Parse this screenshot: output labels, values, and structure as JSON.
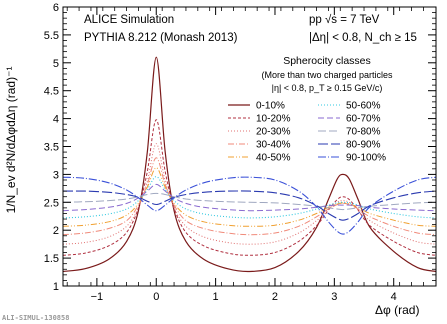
{
  "chart_data": {
    "type": "line",
    "xlabel": "Δφ (rad)",
    "ylabel": "1/N_ev d²N/dΔφdΔη (rad)⁻¹",
    "xlim": [
      -1.5708,
      4.7124
    ],
    "ylim": [
      1,
      6
    ],
    "x_ticks": [
      -1,
      0,
      1,
      2,
      3,
      4
    ],
    "y_ticks": [
      1,
      1.5,
      2,
      2.5,
      3,
      3.5,
      4,
      4.5,
      5,
      5.5,
      6
    ],
    "grid": false,
    "annotations": {
      "sim_line1": "ALICE Simulation",
      "sim_line2": "PYTHIA 8.212 (Monash 2013)",
      "sys_line1": "pp √s = 7 TeV",
      "sys_line2": "|Δη| < 0.8, N_ch ≥ 15",
      "watermark": "ALI-SIMUL-130858"
    },
    "legend": {
      "title": "Spherocity classes",
      "subtitle1": "(More than two charged particles",
      "subtitle2": "|η| < 0.8, p_T ≥ 0.15 GeV/c)"
    },
    "x": [
      -1.5708,
      -1.2,
      -0.8,
      -0.5,
      -0.3,
      -0.15,
      0,
      0.15,
      0.3,
      0.5,
      0.8,
      1.2,
      1.5708,
      2.0,
      2.4,
      2.7,
      2.9,
      3.05,
      3.1416,
      3.25,
      3.4,
      3.6,
      4.0,
      4.4,
      4.7124
    ],
    "series": [
      {
        "name": "0-10%",
        "color": "#7a1a1a",
        "dash": "",
        "width": 1.2,
        "values": [
          1.26,
          1.31,
          1.48,
          1.8,
          2.35,
          3.4,
          5.1,
          3.4,
          2.35,
          1.8,
          1.48,
          1.31,
          1.26,
          1.33,
          1.62,
          2.05,
          2.55,
          2.92,
          3.0,
          2.92,
          2.55,
          2.05,
          1.62,
          1.33,
          1.26
        ]
      },
      {
        "name": "10-20%",
        "color": "#b03040",
        "dash": "3,2",
        "width": 1.0,
        "values": [
          1.55,
          1.59,
          1.72,
          1.96,
          2.4,
          3.05,
          3.98,
          3.05,
          2.4,
          1.96,
          1.72,
          1.59,
          1.55,
          1.6,
          1.8,
          2.08,
          2.36,
          2.55,
          2.6,
          2.55,
          2.36,
          2.08,
          1.8,
          1.6,
          1.55
        ]
      },
      {
        "name": "20-30%",
        "color": "#e07070",
        "dash": "1,2",
        "width": 1.0,
        "values": [
          1.75,
          1.78,
          1.88,
          2.07,
          2.4,
          2.88,
          3.55,
          2.88,
          2.4,
          2.07,
          1.88,
          1.78,
          1.75,
          1.79,
          1.95,
          2.17,
          2.38,
          2.5,
          2.53,
          2.5,
          2.38,
          2.17,
          1.95,
          1.79,
          1.75
        ]
      },
      {
        "name": "30-40%",
        "color": "#f08a7a",
        "dash": "6,2,1,2",
        "width": 1.0,
        "values": [
          1.92,
          1.95,
          2.03,
          2.17,
          2.45,
          2.82,
          3.3,
          2.82,
          2.45,
          2.17,
          2.03,
          1.95,
          1.92,
          1.95,
          2.07,
          2.24,
          2.38,
          2.46,
          2.48,
          2.46,
          2.38,
          2.24,
          2.07,
          1.95,
          1.92
        ]
      },
      {
        "name": "40-50%",
        "color": "#f0a030",
        "dash": "6,2,1,2,1,2",
        "width": 1.0,
        "values": [
          2.07,
          2.09,
          2.15,
          2.27,
          2.48,
          2.77,
          3.12,
          2.77,
          2.48,
          2.27,
          2.15,
          2.09,
          2.07,
          2.09,
          2.18,
          2.3,
          2.41,
          2.47,
          2.49,
          2.47,
          2.41,
          2.3,
          2.18,
          2.09,
          2.07
        ]
      },
      {
        "name": "50-60%",
        "color": "#30c8e0",
        "dash": "1,2",
        "width": 1.1,
        "values": [
          2.22,
          2.24,
          2.29,
          2.38,
          2.53,
          2.73,
          2.96,
          2.73,
          2.53,
          2.38,
          2.29,
          2.24,
          2.22,
          2.24,
          2.3,
          2.38,
          2.45,
          2.49,
          2.5,
          2.49,
          2.45,
          2.38,
          2.3,
          2.24,
          2.22
        ]
      },
      {
        "name": "60-70%",
        "color": "#8a6ad0",
        "dash": "6,3",
        "width": 1.0,
        "values": [
          2.35,
          2.37,
          2.41,
          2.48,
          2.58,
          2.7,
          2.82,
          2.7,
          2.58,
          2.48,
          2.41,
          2.37,
          2.35,
          2.36,
          2.38,
          2.41,
          2.44,
          2.45,
          2.45,
          2.45,
          2.44,
          2.41,
          2.38,
          2.36,
          2.35
        ]
      },
      {
        "name": "70-80%",
        "color": "#a0a8c0",
        "dash": "8,3",
        "width": 1.0,
        "values": [
          2.5,
          2.51,
          2.53,
          2.56,
          2.6,
          2.64,
          2.66,
          2.64,
          2.6,
          2.56,
          2.53,
          2.51,
          2.5,
          2.49,
          2.46,
          2.43,
          2.4,
          2.38,
          2.37,
          2.38,
          2.4,
          2.43,
          2.46,
          2.49,
          2.5
        ]
      },
      {
        "name": "80-90%",
        "color": "#2a3ab0",
        "dash": "10,3",
        "width": 1.1,
        "values": [
          2.7,
          2.7,
          2.68,
          2.64,
          2.59,
          2.52,
          2.46,
          2.52,
          2.59,
          2.64,
          2.68,
          2.7,
          2.7,
          2.67,
          2.58,
          2.44,
          2.3,
          2.21,
          2.18,
          2.21,
          2.3,
          2.44,
          2.58,
          2.67,
          2.7
        ]
      },
      {
        "name": "90-100%",
        "color": "#3a50d8",
        "dash": "8,2,1,2",
        "width": 1.1,
        "values": [
          2.95,
          2.93,
          2.85,
          2.72,
          2.58,
          2.45,
          2.35,
          2.45,
          2.58,
          2.72,
          2.85,
          2.93,
          2.95,
          2.9,
          2.7,
          2.42,
          2.15,
          1.98,
          1.93,
          1.98,
          2.15,
          2.42,
          2.7,
          2.9,
          2.95
        ]
      }
    ]
  }
}
